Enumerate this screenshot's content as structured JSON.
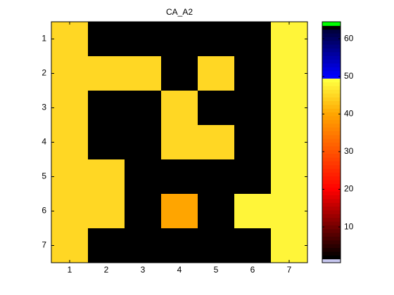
{
  "chart_data": {
    "type": "heatmap",
    "title": "CA_A2",
    "values": [
      [
        45,
        2,
        2,
        2,
        2,
        2,
        48
      ],
      [
        45,
        45,
        45,
        2,
        45,
        2,
        48
      ],
      [
        45,
        2,
        2,
        45,
        2,
        2,
        48
      ],
      [
        45,
        2,
        2,
        45,
        45,
        2,
        48
      ],
      [
        45,
        45,
        2,
        2,
        2,
        2,
        48
      ],
      [
        45,
        45,
        2,
        40,
        2,
        48,
        48
      ],
      [
        45,
        2,
        2,
        2,
        2,
        2,
        48
      ]
    ],
    "xlim": [
      0.5,
      7.5
    ],
    "ylim": [
      0.5,
      7.5
    ],
    "xticks": [
      1,
      2,
      3,
      4,
      5,
      6,
      7
    ],
    "yticks": [
      1,
      2,
      3,
      4,
      5,
      6,
      7
    ],
    "colorbar": {
      "lim": [
        0.5,
        64.5
      ],
      "ticks": [
        10,
        20,
        30,
        40,
        50,
        60
      ]
    },
    "colormap": [
      [
        1,
        "#c8c8f0"
      ],
      [
        2,
        "#000000"
      ],
      [
        20,
        "#ff0000"
      ],
      [
        40,
        "#ffa500"
      ],
      [
        49,
        "#ffff40"
      ],
      [
        50,
        "#0000ff"
      ],
      [
        62,
        "#000040"
      ],
      [
        63,
        "#000000"
      ],
      [
        64,
        "#00ff00"
      ]
    ]
  }
}
